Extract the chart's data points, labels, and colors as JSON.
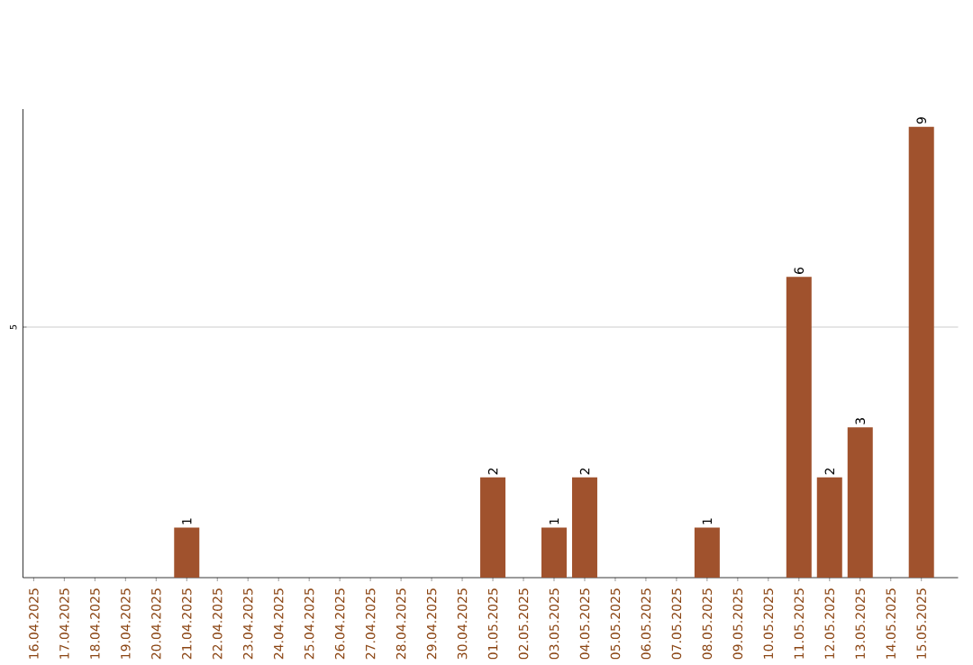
{
  "chart_data": {
    "type": "bar",
    "categories": [
      "16.04.2025",
      "17.04.2025",
      "18.04.2025",
      "19.04.2025",
      "20.04.2025",
      "21.04.2025",
      "22.04.2025",
      "23.04.2025",
      "24.04.2025",
      "25.04.2025",
      "26.04.2025",
      "27.04.2025",
      "28.04.2025",
      "29.04.2025",
      "30.04.2025",
      "01.05.2025",
      "02.05.2025",
      "03.05.2025",
      "04.05.2025",
      "05.05.2025",
      "06.05.2025",
      "07.05.2025",
      "08.05.2025",
      "09.05.2025",
      "10.05.2025",
      "11.05.2025",
      "12.05.2025",
      "13.05.2025",
      "14.05.2025",
      "15.05.2025"
    ],
    "values": [
      0,
      0,
      0,
      0,
      0,
      1,
      0,
      0,
      0,
      0,
      0,
      0,
      0,
      0,
      0,
      2,
      0,
      1,
      2,
      0,
      0,
      0,
      1,
      0,
      0,
      6,
      2,
      3,
      0,
      9
    ],
    "value_labels": [
      null,
      null,
      null,
      null,
      null,
      "1",
      null,
      null,
      null,
      null,
      null,
      null,
      null,
      null,
      null,
      "2",
      null,
      "1",
      "2",
      null,
      null,
      null,
      "1",
      null,
      null,
      "6",
      "2",
      "3",
      null,
      "9"
    ],
    "color": "#a0522d",
    "ylim": [
      0,
      9.35
    ],
    "yticks": [
      5
    ],
    "grid": "y"
  }
}
